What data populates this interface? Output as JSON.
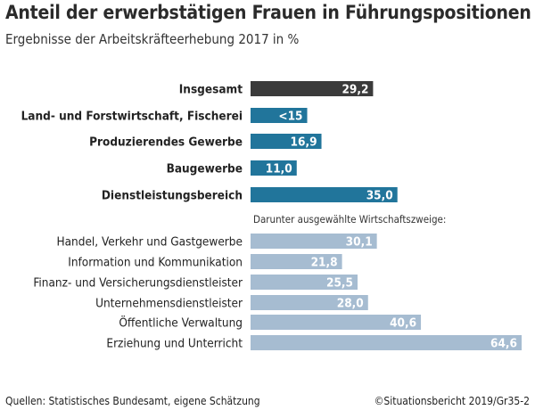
{
  "header": {
    "title": "Anteil der erwerbstätigen Frauen in Führungspositionen",
    "subtitle": "Ergebnisse der Arbeitskräfteerhebung 2017 in %"
  },
  "footer": {
    "source": "Quellen: Statistisches Bundesamt, eigene Schätzung",
    "copyright": "©Situationsbericht 2019/Gr35-2"
  },
  "colors": {
    "total": "#3b3b3b",
    "sector": "#21759b",
    "branch": "#a6bcd1",
    "label_light": "#ffffff"
  },
  "chart_data": {
    "type": "bar",
    "orientation": "horizontal",
    "title": "Anteil der erwerbstätigen Frauen in Führungspositionen",
    "subtitle": "Ergebnisse der Arbeitskräfteerhebung 2017 in %",
    "xlim": [
      0,
      70
    ],
    "grid": false,
    "groups": [
      {
        "bold": true,
        "items": [
          {
            "category": "Insgesamt",
            "value": 29.2,
            "label": "29,2",
            "style": "total"
          },
          {
            "category": "Land- und Forstwirtschaft, Fischerei",
            "value": 13.5,
            "label": "<15",
            "style": "sector"
          },
          {
            "category": "Produzierendes Gewerbe",
            "value": 16.9,
            "label": "16,9",
            "style": "sector"
          },
          {
            "category": "Baugewerbe",
            "value": 11.0,
            "label": "11,0",
            "style": "sector"
          },
          {
            "category": "Dienstleistungsbereich",
            "value": 35.0,
            "label": "35,0",
            "style": "sector"
          }
        ]
      },
      {
        "heading": "Darunter ausgewählte Wirtschaftszweige:",
        "bold": false,
        "items": [
          {
            "category": "Handel, Verkehr und Gastgewerbe",
            "value": 30.1,
            "label": "30,1",
            "style": "branch"
          },
          {
            "category": "Information und Kommunikation",
            "value": 21.8,
            "label": "21,8",
            "style": "branch"
          },
          {
            "category": "Finanz- und Versicherungsdienstleister",
            "value": 25.5,
            "label": "25,5",
            "style": "branch"
          },
          {
            "category": "Unternehmensdienstleister",
            "value": 28.0,
            "label": "28,0",
            "style": "branch"
          },
          {
            "category": "Öffentliche Verwaltung",
            "value": 40.6,
            "label": "40,6",
            "style": "branch"
          },
          {
            "category": "Erziehung und Unterricht",
            "value": 64.6,
            "label": "64,6",
            "style": "branch"
          }
        ]
      }
    ]
  }
}
